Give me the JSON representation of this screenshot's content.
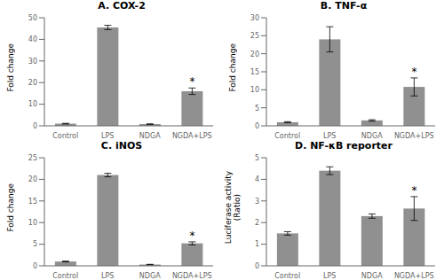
{
  "chart_data": [
    {
      "type": "bar",
      "title": "A. COX-2",
      "ylabel": "Fold change",
      "categories": [
        "Control",
        "LPS",
        "NDGA",
        "NGDA+LPS"
      ],
      "values": [
        1.0,
        45.5,
        0.8,
        16.0
      ],
      "errors": [
        0.15,
        1.0,
        0.1,
        1.5
      ],
      "color": "#909090",
      "ylim": [
        0,
        50
      ],
      "yticks": [
        0,
        10,
        20,
        30,
        40,
        50
      ],
      "annotations": [
        {
          "text": "*",
          "category": "NGDA+LPS"
        }
      ]
    },
    {
      "type": "bar",
      "title": "B. TNF-α",
      "ylabel": "Fold change",
      "categories": [
        "Control",
        "LPS",
        "NDGA",
        "NGDA+LPS"
      ],
      "values": [
        1.0,
        24.0,
        1.5,
        10.8
      ],
      "errors": [
        0.15,
        3.5,
        0.2,
        2.5
      ],
      "color": "#909090",
      "ylim": [
        0,
        30
      ],
      "yticks": [
        0,
        5,
        10,
        15,
        20,
        25,
        30
      ],
      "annotations": [
        {
          "text": "*",
          "category": "NGDA+LPS"
        }
      ]
    },
    {
      "type": "bar",
      "title": "C. iNOS",
      "ylabel": "Fold change",
      "categories": [
        "Control",
        "LPS",
        "NDGA",
        "NGDA+LPS"
      ],
      "values": [
        1.0,
        21.0,
        0.3,
        5.2
      ],
      "errors": [
        0.1,
        0.4,
        0.05,
        0.35
      ],
      "color": "#909090",
      "ylim": [
        0,
        25
      ],
      "yticks": [
        0,
        5,
        10,
        15,
        20,
        25
      ],
      "annotations": [
        {
          "text": "*",
          "category": "NGDA+LPS"
        }
      ]
    },
    {
      "type": "bar",
      "title": "D. NF-κB reporter",
      "ylabel": "Luciferase activity\n(Ratio)",
      "categories": [
        "Control",
        "LPS",
        "NDGA",
        "NGDA+LPS"
      ],
      "values": [
        1.5,
        4.4,
        2.3,
        2.65
      ],
      "errors": [
        0.08,
        0.18,
        0.1,
        0.55
      ],
      "color": "#909090",
      "ylim": [
        0,
        5
      ],
      "yticks": [
        0,
        1,
        2,
        3,
        4,
        5
      ],
      "annotations": [
        {
          "text": "*",
          "category": "NGDA+LPS"
        }
      ]
    }
  ]
}
